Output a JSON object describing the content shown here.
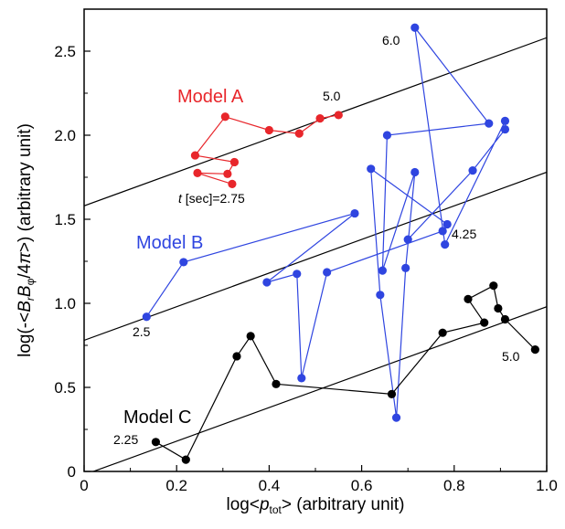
{
  "chart_data": {
    "type": "scatter",
    "title": "",
    "xlabel": "log<p_tot> (arbitrary unit)",
    "ylabel": "log(-<B_r B_φ/4π>) (arbitrary unit)",
    "xlim": [
      0,
      1.0
    ],
    "ylim": [
      0,
      2.75
    ],
    "x_ticks": [
      "0",
      "0.2",
      "0.4",
      "0.6",
      "0.8",
      "1.0"
    ],
    "y_ticks": [
      "0",
      "0.5",
      "1.0",
      "1.5",
      "2.0",
      "2.5"
    ],
    "grid": false,
    "series": [
      {
        "name": "Model A",
        "color": "#e8262b",
        "points": [
          [
            0.32,
            1.71
          ],
          [
            0.245,
            1.775
          ],
          [
            0.31,
            1.77
          ],
          [
            0.325,
            1.84
          ],
          [
            0.24,
            1.88
          ],
          [
            0.305,
            2.11
          ],
          [
            0.4,
            2.03
          ],
          [
            0.465,
            2.01
          ],
          [
            0.51,
            2.1
          ],
          [
            0.55,
            2.12
          ]
        ]
      },
      {
        "name": "Model B",
        "color": "#2f45e0",
        "points": [
          [
            0.135,
            0.92
          ],
          [
            0.215,
            1.245
          ],
          [
            0.585,
            1.535
          ],
          [
            0.395,
            1.125
          ],
          [
            0.46,
            1.175
          ],
          [
            0.47,
            0.555
          ],
          [
            0.525,
            1.185
          ],
          [
            0.775,
            1.43
          ],
          [
            0.785,
            1.47
          ],
          [
            0.62,
            1.8
          ],
          [
            0.64,
            1.05
          ],
          [
            0.675,
            0.32
          ],
          [
            0.695,
            1.21
          ],
          [
            0.715,
            1.78
          ],
          [
            0.645,
            1.195
          ],
          [
            0.655,
            2.0
          ],
          [
            0.875,
            2.07
          ],
          [
            0.715,
            2.64
          ],
          [
            0.78,
            1.35
          ],
          [
            0.91,
            2.085
          ],
          [
            0.91,
            2.035
          ],
          [
            0.84,
            1.79
          ],
          [
            0.7,
            1.38
          ]
        ]
      },
      {
        "name": "Model C",
        "color": "#000000",
        "points": [
          [
            0.155,
            0.175
          ],
          [
            0.22,
            0.07
          ],
          [
            0.33,
            0.685
          ],
          [
            0.36,
            0.805
          ],
          [
            0.415,
            0.52
          ],
          [
            0.665,
            0.46
          ],
          [
            0.775,
            0.825
          ],
          [
            0.865,
            0.885
          ],
          [
            0.83,
            1.025
          ],
          [
            0.885,
            1.105
          ],
          [
            0.895,
            0.97
          ],
          [
            0.91,
            0.905
          ],
          [
            0.975,
            0.725
          ]
        ]
      }
    ],
    "reference_lines": [
      {
        "intercept": 1.58,
        "slope": 1.0
      },
      {
        "intercept": 0.78,
        "slope": 1.0
      },
      {
        "intercept": -0.02,
        "slope": 1.0
      }
    ],
    "annotations": [
      {
        "text": "5.0",
        "series": "Model A"
      },
      {
        "text": "t [sec]=2.75",
        "series": "Model A"
      },
      {
        "text": "6.0",
        "series": "Model B"
      },
      {
        "text": "4.25",
        "series": "Model B"
      },
      {
        "text": "2.5",
        "series": "Model B"
      },
      {
        "text": "2.25",
        "series": "Model C"
      },
      {
        "text": "5.0",
        "series": "Model C"
      }
    ]
  }
}
